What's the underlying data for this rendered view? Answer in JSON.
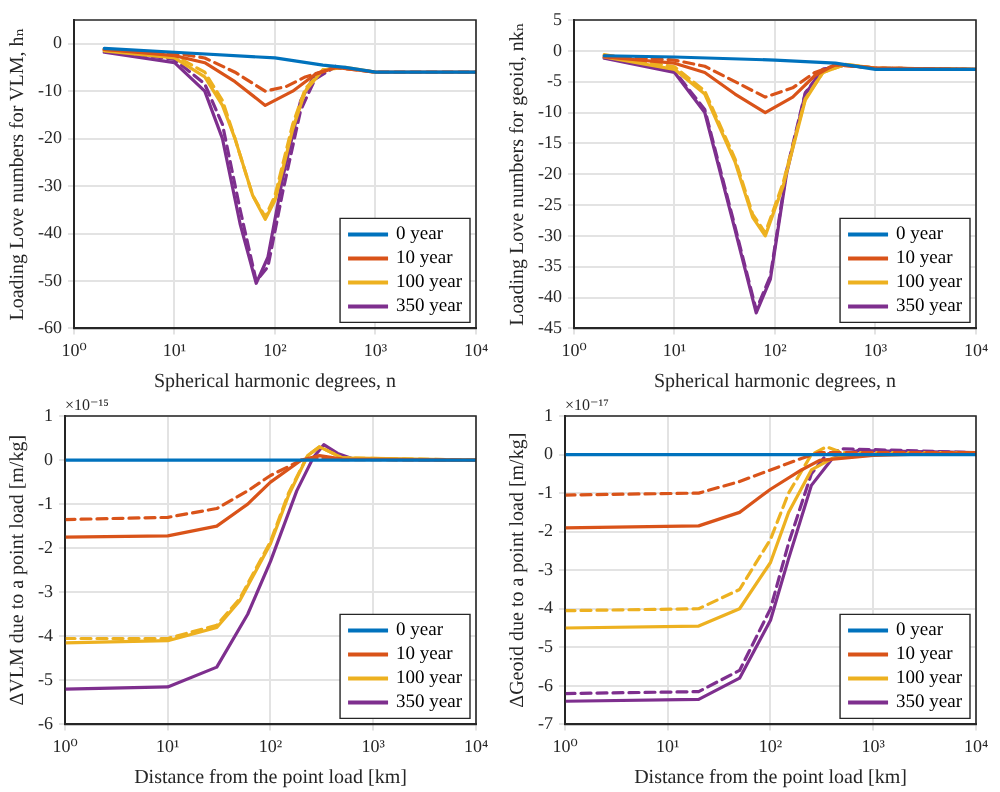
{
  "chart_data": [
    {
      "type": "line",
      "xlabel": "Spherical harmonic degrees, n",
      "ylabel": "Loading Love numbers for VLM, hₙ",
      "log": "x",
      "grid": true,
      "legend": "bottom right",
      "xlim": [
        1,
        10000
      ],
      "ylim": [
        -60,
        5
      ],
      "xticks": [
        {
          "value": 1,
          "label": "10⁰"
        },
        {
          "value": 10,
          "label": "10¹"
        },
        {
          "value": 100,
          "label": "10²"
        },
        {
          "value": 1000,
          "label": "10³"
        },
        {
          "value": 10000,
          "label": "10⁴"
        }
      ],
      "yticks": [
        -60,
        -50,
        -40,
        -30,
        -20,
        -10,
        0
      ],
      "series": [
        {
          "name": "0 year",
          "color": "#0072bd",
          "line_style": "solid",
          "x": [
            2,
            10,
            100,
            300,
            500,
            1000,
            10000
          ],
          "values": [
            -1,
            -1.8,
            -3,
            -4.5,
            -5,
            -6,
            -6
          ]
        },
        {
          "name": "10 year",
          "color": "#d95319",
          "line_style": "solid",
          "x": [
            2,
            10,
            20,
            40,
            80,
            150,
            250,
            400,
            1000,
            10000
          ],
          "values": [
            -1.2,
            -2.5,
            -4,
            -8,
            -13,
            -10,
            -6.5,
            -5,
            -6,
            -6
          ]
        },
        {
          "color": "#d95319",
          "line_style": "dashed",
          "x": [
            2,
            10,
            20,
            40,
            80,
            130,
            200,
            400,
            1000,
            10000
          ],
          "values": [
            -1.2,
            -2,
            -3,
            -6,
            -10,
            -9,
            -7,
            -5,
            -6,
            -6
          ]
        },
        {
          "name": "100 year",
          "color": "#edb120",
          "line_style": "solid",
          "x": [
            2,
            10,
            20,
            30,
            40,
            60,
            80,
            100,
            150,
            200,
            300,
            500,
            1000
          ],
          "values": [
            -1.5,
            -3,
            -7,
            -13,
            -20,
            -32,
            -37,
            -33,
            -18,
            -10,
            -5.5,
            -5,
            -6
          ]
        },
        {
          "color": "#edb120",
          "line_style": "dashed",
          "x": [
            2,
            10,
            20,
            30,
            40,
            60,
            80,
            100,
            150,
            200,
            300
          ],
          "values": [
            -1.2,
            -2.5,
            -6,
            -12,
            -20,
            -32,
            -36.5,
            -32,
            -17,
            -9.5,
            -5.5
          ]
        },
        {
          "name": "350 year",
          "color": "#7e2f8e",
          "line_style": "solid",
          "x": [
            2,
            10,
            20,
            30,
            45,
            65,
            85,
            120,
            180,
            250,
            400
          ],
          "values": [
            -1.8,
            -4,
            -10,
            -20,
            -38,
            -50.5,
            -45,
            -28,
            -12,
            -6.5,
            -4.8
          ]
        },
        {
          "color": "#7e2f8e",
          "line_style": "dashed",
          "x": [
            2,
            10,
            20,
            30,
            45,
            65,
            85,
            120,
            180,
            250,
            400
          ],
          "values": [
            -1.4,
            -3.3,
            -8.5,
            -17,
            -35,
            -50,
            -47,
            -31,
            -14,
            -7.5,
            -4.8
          ]
        }
      ]
    },
    {
      "type": "line",
      "xlabel": "Spherical harmonic degrees, n",
      "ylabel": "Loading Love numbers for geoid, nkₙ",
      "log": "x",
      "grid": true,
      "legend": "bottom right",
      "xlim": [
        1,
        10000
      ],
      "ylim": [
        -45,
        5
      ],
      "xticks": [
        {
          "value": 1,
          "label": "10⁰"
        },
        {
          "value": 10,
          "label": "10¹"
        },
        {
          "value": 100,
          "label": "10²"
        },
        {
          "value": 1000,
          "label": "10³"
        },
        {
          "value": 10000,
          "label": "10⁴"
        }
      ],
      "yticks": [
        -45,
        -40,
        -35,
        -30,
        -25,
        -20,
        -15,
        -10,
        -5,
        0,
        5
      ],
      "series": [
        {
          "name": "0 year",
          "color": "#0072bd",
          "line_style": "solid",
          "x": [
            2,
            10,
            100,
            400,
            1000,
            10000
          ],
          "values": [
            -0.8,
            -1,
            -1.5,
            -2,
            -3,
            -3
          ]
        },
        {
          "name": "10 year",
          "color": "#d95319",
          "line_style": "solid",
          "x": [
            2,
            10,
            20,
            40,
            80,
            150,
            250,
            400,
            1000,
            10000
          ],
          "values": [
            -1,
            -2,
            -3.5,
            -7,
            -10,
            -7.5,
            -4,
            -2.2,
            -2.8,
            -3
          ]
        },
        {
          "color": "#d95319",
          "line_style": "dashed",
          "x": [
            2,
            10,
            20,
            40,
            80,
            150,
            250,
            400,
            1000,
            10000
          ],
          "values": [
            -0.8,
            -1.5,
            -2.5,
            -5,
            -7.5,
            -6,
            -3.5,
            -2.3,
            -2.8,
            -3
          ]
        },
        {
          "name": "100 year",
          "color": "#edb120",
          "line_style": "solid",
          "x": [
            2,
            10,
            20,
            40,
            60,
            80,
            120,
            200,
            300,
            500,
            1000,
            10000
          ],
          "values": [
            -1,
            -3,
            -7,
            -18,
            -27,
            -30,
            -22,
            -8,
            -3.5,
            -2.2,
            -2.8,
            -3
          ]
        },
        {
          "color": "#edb120",
          "line_style": "dashed",
          "x": [
            2,
            10,
            20,
            40,
            60,
            80,
            120,
            200,
            300,
            500,
            1000,
            10000
          ],
          "values": [
            -0.6,
            -2.6,
            -6.5,
            -17.5,
            -26.5,
            -29.5,
            -21.5,
            -7.8,
            -3.5,
            -2.2,
            -2.8,
            -3
          ]
        },
        {
          "name": "350 year",
          "color": "#7e2f8e",
          "line_style": "solid",
          "x": [
            2,
            10,
            20,
            40,
            65,
            90,
            130,
            200,
            300,
            500
          ],
          "values": [
            -1.2,
            -3.5,
            -10,
            -29,
            -42.5,
            -37,
            -20,
            -7,
            -3,
            -2.3
          ]
        },
        {
          "color": "#7e2f8e",
          "line_style": "dashed",
          "x": [
            2,
            10,
            20,
            40,
            65,
            90,
            130,
            200,
            300,
            500,
            1000,
            10000
          ],
          "values": [
            -1.1,
            -3.3,
            -9.5,
            -28.5,
            -42,
            -36.5,
            -19.5,
            -6.8,
            -3,
            -2.3,
            -2.8,
            -3
          ]
        }
      ]
    },
    {
      "type": "line",
      "xlabel": "Distance from the point load [km]",
      "ylabel": "ΔVLM due to a point load [m/kg]",
      "annotations": [
        "×10⁻¹⁵"
      ],
      "log": "x",
      "grid": true,
      "legend": "bottom right",
      "xlim": [
        1,
        10000
      ],
      "ylim": [
        -6,
        1
      ],
      "xticks": [
        {
          "value": 1,
          "label": "10⁰"
        },
        {
          "value": 10,
          "label": "10¹"
        },
        {
          "value": 100,
          "label": "10²"
        },
        {
          "value": 1000,
          "label": "10³"
        },
        {
          "value": 10000,
          "label": "10⁴"
        }
      ],
      "yticks": [
        -6,
        -5,
        -4,
        -3,
        -2,
        -1,
        0,
        1
      ],
      "series": [
        {
          "name": "0 year",
          "color": "#0072bd",
          "line_style": "solid",
          "x": [
            1,
            10000
          ],
          "values": [
            0,
            0
          ]
        },
        {
          "name": "10 year",
          "color": "#d95319",
          "line_style": "solid",
          "x": [
            1,
            10,
            30,
            60,
            100,
            200,
            300,
            500,
            10000
          ],
          "values": [
            -1.75,
            -1.72,
            -1.5,
            -1,
            -0.5,
            0,
            0.1,
            0.02,
            0
          ]
        },
        {
          "color": "#d95319",
          "line_style": "dashed",
          "x": [
            1,
            10,
            30,
            60,
            100,
            200,
            300,
            500,
            10000
          ],
          "values": [
            -1.35,
            -1.3,
            -1.1,
            -0.7,
            -0.35,
            0,
            0.05,
            0.01,
            0
          ]
        },
        {
          "name": "100 year",
          "color": "#edb120",
          "line_style": "solid",
          "x": [
            1,
            10,
            30,
            50,
            100,
            150,
            230,
            300,
            500,
            10000
          ],
          "values": [
            -4.15,
            -4.1,
            -3.8,
            -3.2,
            -1.9,
            -0.8,
            0.1,
            0.3,
            0.05,
            0
          ]
        },
        {
          "color": "#edb120",
          "line_style": "dashed",
          "x": [
            1,
            10,
            30,
            50,
            100,
            150,
            230,
            300,
            500,
            10000
          ],
          "values": [
            -4.05,
            -4.05,
            -3.75,
            -3.15,
            -1.85,
            -0.75,
            0.1,
            0.3,
            0.05,
            0
          ]
        },
        {
          "name": "350 year",
          "color": "#7e2f8e",
          "line_style": "solid",
          "x": [
            1,
            10,
            30,
            60,
            100,
            180,
            260,
            330,
            450,
            650,
            10000
          ],
          "values": [
            -5.2,
            -5.15,
            -4.7,
            -3.5,
            -2.3,
            -0.7,
            0.05,
            0.35,
            0.15,
            0.02,
            0
          ]
        }
      ]
    },
    {
      "type": "line",
      "xlabel": "Distance from the point load [km]",
      "ylabel": "ΔGeoid due to a point load [m/kg]",
      "annotations": [
        "×10⁻¹⁷"
      ],
      "log": "x",
      "grid": true,
      "legend": "bottom right",
      "xlim": [
        1,
        10000
      ],
      "ylim": [
        -7,
        1
      ],
      "xticks": [
        {
          "value": 1,
          "label": "10⁰"
        },
        {
          "value": 10,
          "label": "10¹"
        },
        {
          "value": 100,
          "label": "10²"
        },
        {
          "value": 1000,
          "label": "10³"
        },
        {
          "value": 10000,
          "label": "10⁴"
        }
      ],
      "yticks": [
        -7,
        -6,
        -5,
        -4,
        -3,
        -2,
        -1,
        0,
        1
      ],
      "series": [
        {
          "name": "0 year",
          "color": "#0072bd",
          "line_style": "solid",
          "x": [
            1,
            10000
          ],
          "values": [
            0,
            0
          ]
        },
        {
          "name": "10 year",
          "color": "#d95319",
          "line_style": "solid",
          "x": [
            1,
            20,
            50,
            100,
            200,
            300,
            1000,
            10000
          ],
          "values": [
            -1.9,
            -1.85,
            -1.5,
            -0.9,
            -0.4,
            -0.15,
            -0.02,
            0.05
          ]
        },
        {
          "color": "#d95319",
          "line_style": "dashed",
          "x": [
            1,
            20,
            50,
            100,
            200,
            300,
            10000
          ],
          "values": [
            -1.05,
            -1,
            -0.7,
            -0.4,
            -0.1,
            0.05,
            0.05
          ]
        },
        {
          "name": "100 year",
          "color": "#edb120",
          "line_style": "solid",
          "x": [
            1,
            20,
            50,
            100,
            150,
            250,
            400,
            1000,
            10000
          ],
          "values": [
            -4.5,
            -4.45,
            -4,
            -2.8,
            -1.5,
            -0.4,
            -0.1,
            0,
            0.05
          ]
        },
        {
          "color": "#edb120",
          "line_style": "dashed",
          "x": [
            1,
            20,
            50,
            100,
            150,
            250,
            350,
            500,
            10000
          ],
          "values": [
            -4.05,
            -4,
            -3.5,
            -2.2,
            -1,
            0,
            0.2,
            0.05,
            0.05
          ]
        },
        {
          "name": "350 year",
          "color": "#7e2f8e",
          "line_style": "solid",
          "x": [
            1,
            20,
            50,
            100,
            150,
            250,
            400,
            700,
            10000
          ],
          "values": [
            -6.4,
            -6.35,
            -5.8,
            -4.3,
            -2.7,
            -0.8,
            -0.1,
            0.1,
            0.05
          ]
        },
        {
          "color": "#7e2f8e",
          "line_style": "dashed",
          "x": [
            1,
            20,
            50,
            100,
            150,
            250,
            350,
            500,
            10000
          ],
          "values": [
            -6.2,
            -6.15,
            -5.6,
            -4,
            -2.3,
            -0.5,
            0,
            0.15,
            0.05
          ]
        }
      ]
    }
  ]
}
